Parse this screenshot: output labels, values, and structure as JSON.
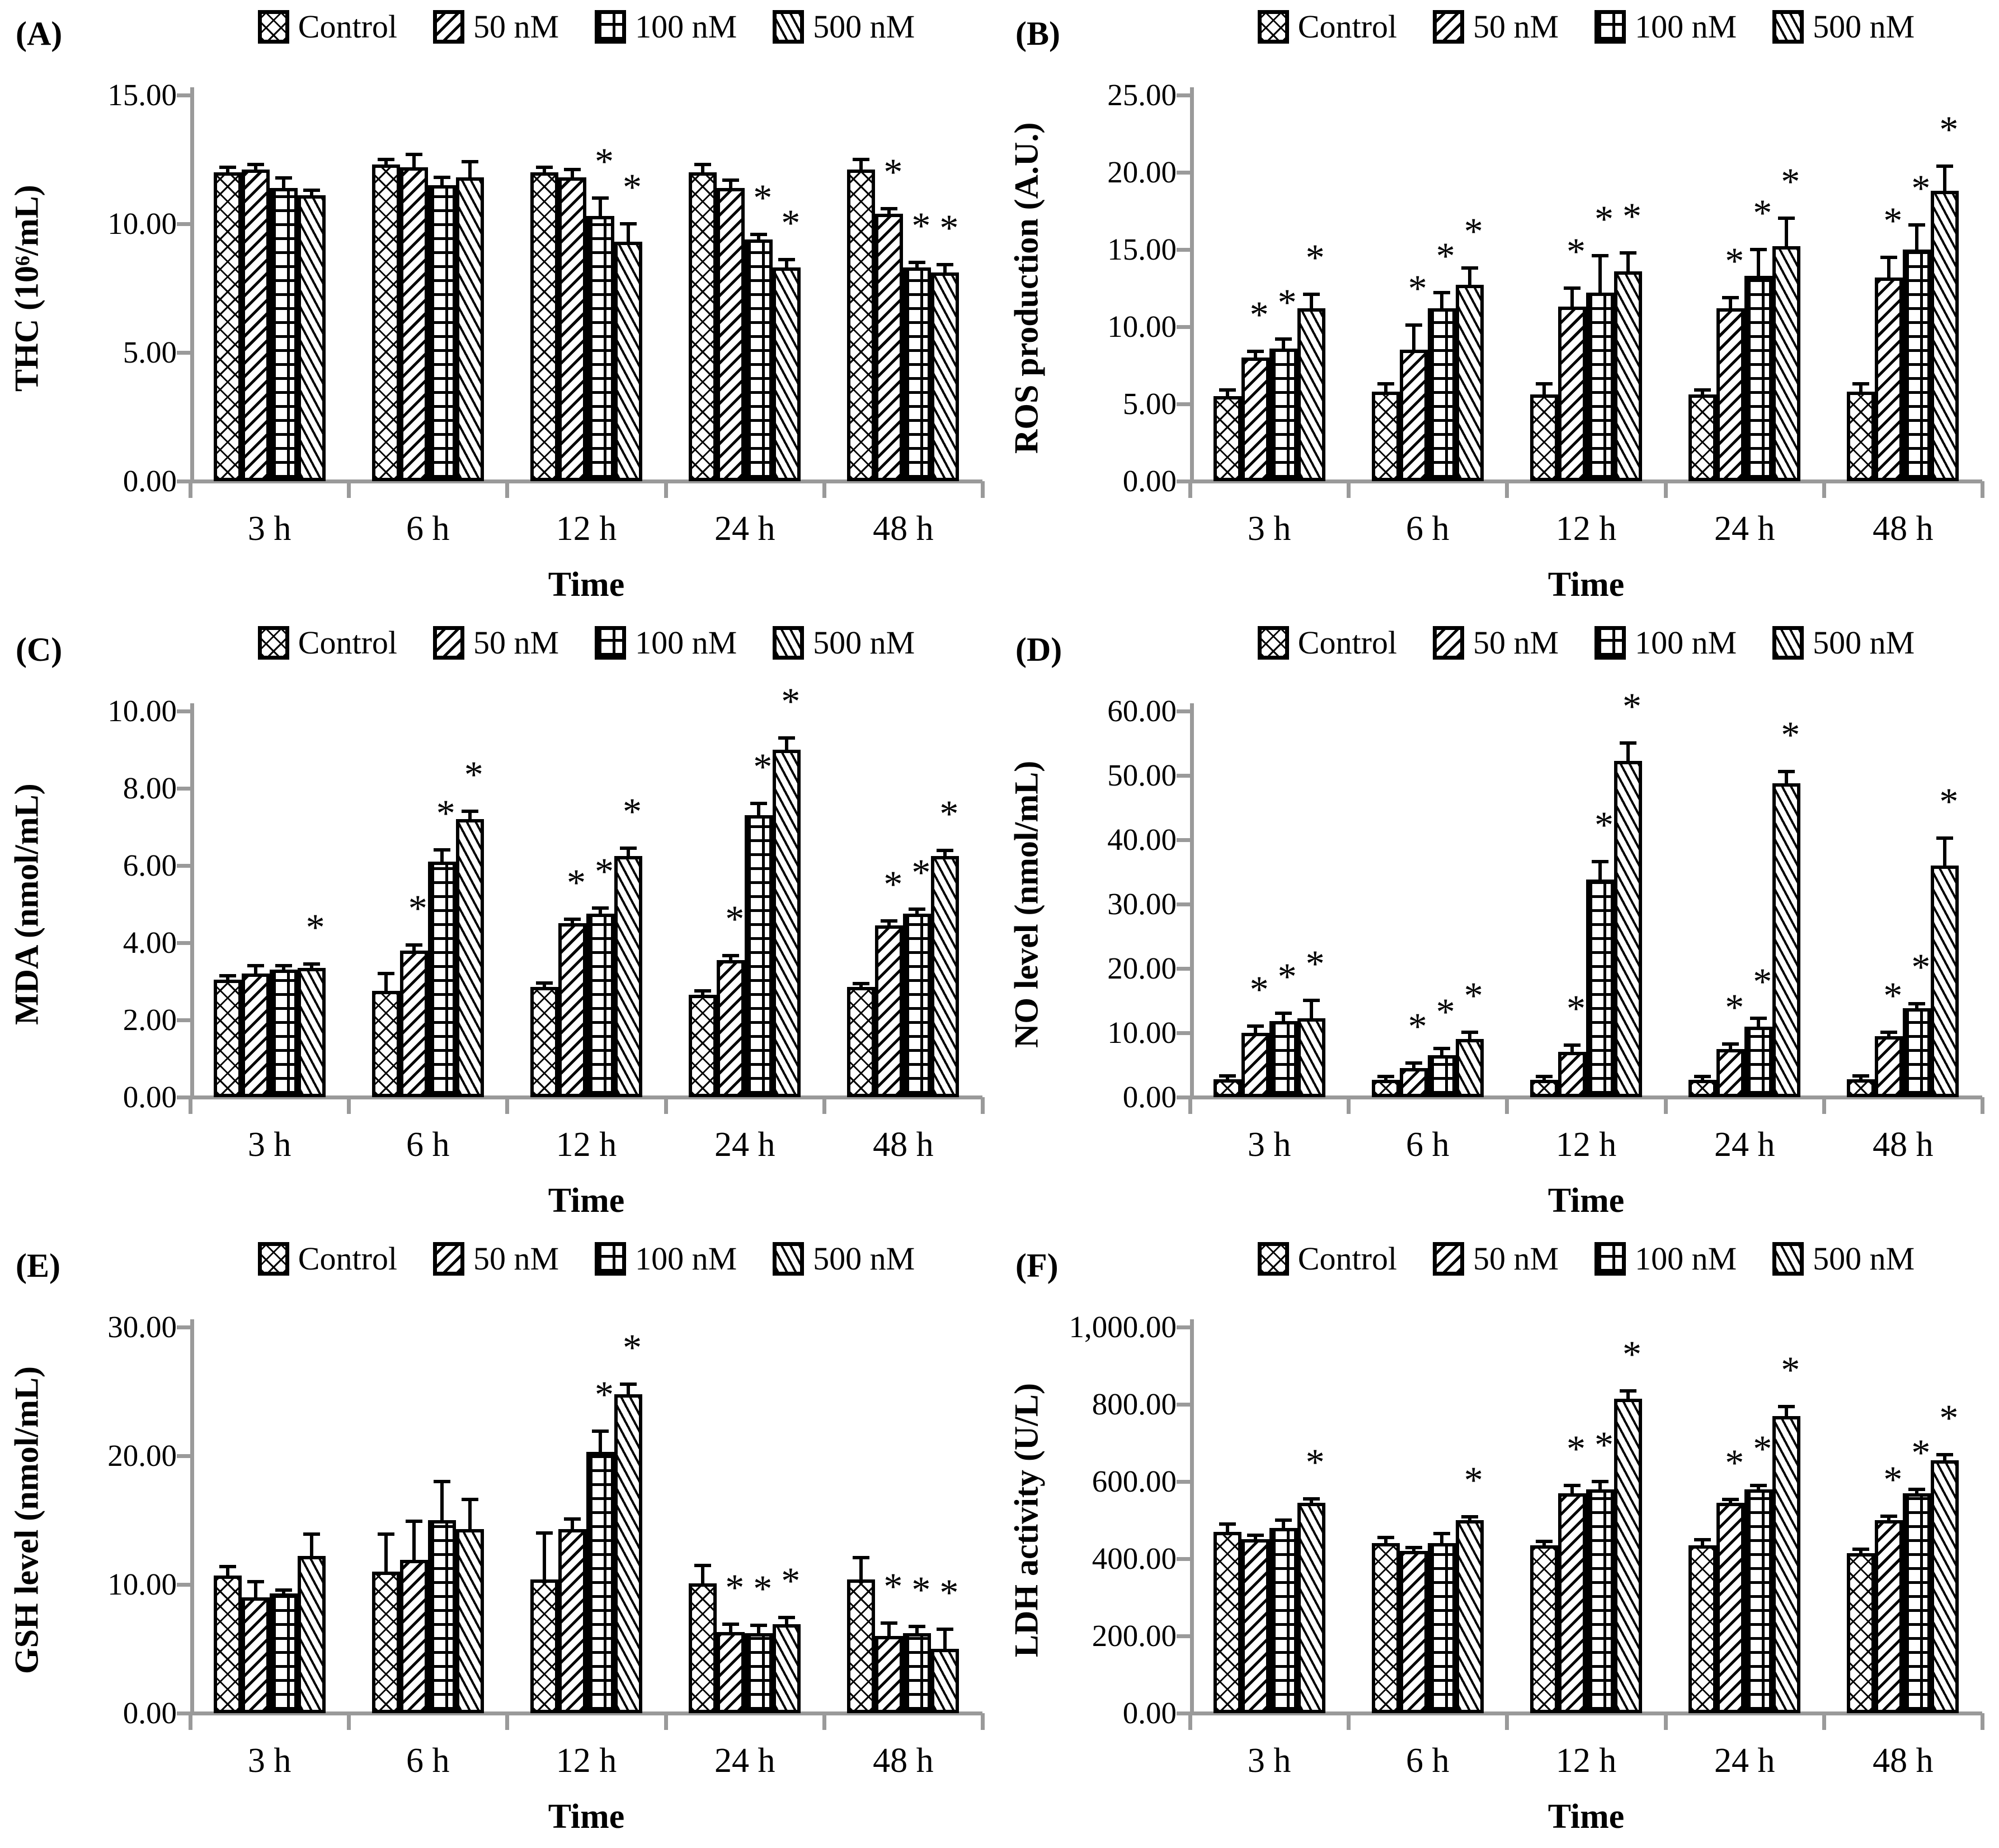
{
  "figure": {
    "significance_marker": "*",
    "xlabel": "Time",
    "categories": [
      "3 h",
      "6 h",
      "12 h",
      "24 h",
      "48 h"
    ]
  },
  "legend": {
    "items": [
      {
        "label": "Control",
        "pattern": "crosshatch"
      },
      {
        "label": "50 nM",
        "pattern": "diag-up"
      },
      {
        "label": "100 nM",
        "pattern": "grid"
      },
      {
        "label": "500 nM",
        "pattern": "diag-down"
      }
    ]
  },
  "colors": {
    "bar_fill": "#ffffff",
    "bar_stroke": "#000000",
    "axis": "#9a9a9a",
    "text": "#000000"
  },
  "chart_data": [
    {
      "id": "A",
      "type": "bar",
      "panel_label": "(A)",
      "ylabel": "THC (10⁶/mL)",
      "xlabel": "Time",
      "ymax": 15,
      "ylim": [
        0,
        15
      ],
      "grid": false,
      "legend_position": "top",
      "yticks": [
        {
          "v": 15,
          "label": "15.00"
        },
        {
          "v": 10,
          "label": "10.00"
        },
        {
          "v": 5,
          "label": "5.00"
        },
        {
          "v": 0,
          "label": "0.00"
        }
      ],
      "categories": [
        "3 h",
        "6 h",
        "12 h",
        "24 h",
        "48 h"
      ],
      "series": [
        {
          "name": "Control",
          "pattern": "crosshatch",
          "values": [
            12.0,
            12.3,
            12.0,
            12.0,
            12.1
          ],
          "errors": [
            0.2,
            0.2,
            0.2,
            0.3,
            0.4
          ],
          "sig": [
            false,
            false,
            false,
            false,
            false
          ]
        },
        {
          "name": "50 nM",
          "pattern": "diag-up",
          "values": [
            12.1,
            12.2,
            11.8,
            11.4,
            10.4
          ],
          "errors": [
            0.2,
            0.5,
            0.3,
            0.3,
            0.2
          ],
          "sig": [
            false,
            false,
            false,
            false,
            true
          ]
        },
        {
          "name": "100 nM",
          "pattern": "grid",
          "values": [
            11.4,
            11.5,
            10.3,
            9.4,
            8.3
          ],
          "errors": [
            0.4,
            0.3,
            0.7,
            0.2,
            0.2
          ],
          "sig": [
            false,
            false,
            true,
            true,
            true
          ]
        },
        {
          "name": "500 nM",
          "pattern": "diag-down",
          "values": [
            11.1,
            11.8,
            9.3,
            8.3,
            8.1
          ],
          "errors": [
            0.2,
            0.6,
            0.7,
            0.3,
            0.3
          ],
          "sig": [
            false,
            false,
            true,
            true,
            true
          ]
        }
      ]
    },
    {
      "id": "B",
      "type": "bar",
      "panel_label": "(B)",
      "ylabel": "ROS production (A.U.)",
      "xlabel": "Time",
      "ymax": 25,
      "ylim": [
        0,
        25
      ],
      "grid": false,
      "legend_position": "top",
      "yticks": [
        {
          "v": 25,
          "label": "25.00"
        },
        {
          "v": 20,
          "label": "20.00"
        },
        {
          "v": 15,
          "label": "15.00"
        },
        {
          "v": 10,
          "label": "10.00"
        },
        {
          "v": 5,
          "label": "5.00"
        },
        {
          "v": 0,
          "label": "0.00"
        }
      ],
      "categories": [
        "3 h",
        "6 h",
        "12 h",
        "24 h",
        "48 h"
      ],
      "series": [
        {
          "name": "Control",
          "pattern": "crosshatch",
          "values": [
            5.5,
            5.8,
            5.6,
            5.6,
            5.8
          ],
          "errors": [
            0.4,
            0.5,
            0.7,
            0.3,
            0.5
          ],
          "sig": [
            false,
            false,
            false,
            false,
            false
          ]
        },
        {
          "name": "50 nM",
          "pattern": "diag-up",
          "values": [
            8.0,
            8.5,
            11.3,
            11.2,
            13.2
          ],
          "errors": [
            0.4,
            1.6,
            1.2,
            0.7,
            1.3
          ],
          "sig": [
            true,
            true,
            true,
            true,
            true
          ]
        },
        {
          "name": "100 nM",
          "pattern": "grid",
          "values": [
            8.6,
            11.2,
            12.2,
            13.3,
            15.0
          ],
          "errors": [
            0.6,
            1.0,
            2.4,
            1.7,
            1.6
          ],
          "sig": [
            true,
            true,
            true,
            true,
            true
          ]
        },
        {
          "name": "500 nM",
          "pattern": "diag-down",
          "values": [
            11.2,
            12.7,
            13.6,
            15.2,
            18.8
          ],
          "errors": [
            0.9,
            1.1,
            1.2,
            1.8,
            1.6
          ],
          "sig": [
            true,
            true,
            true,
            true,
            true
          ]
        }
      ]
    },
    {
      "id": "C",
      "type": "bar",
      "panel_label": "(C)",
      "ylabel": "MDA (nmol/mL)",
      "xlabel": "Time",
      "ymax": 10,
      "ylim": [
        0,
        10
      ],
      "grid": false,
      "legend_position": "top",
      "yticks": [
        {
          "v": 10,
          "label": "10.00"
        },
        {
          "v": 8,
          "label": "8.00"
        },
        {
          "v": 6,
          "label": "6.00"
        },
        {
          "v": 4,
          "label": "4.00"
        },
        {
          "v": 2,
          "label": "2.00"
        },
        {
          "v": 0,
          "label": "0.00"
        }
      ],
      "categories": [
        "3 h",
        "6 h",
        "12 h",
        "24 h",
        "48 h"
      ],
      "series": [
        {
          "name": "Control",
          "pattern": "crosshatch",
          "values": [
            3.05,
            2.75,
            2.85,
            2.65,
            2.85
          ],
          "errors": [
            0.1,
            0.45,
            0.1,
            0.1,
            0.08
          ],
          "sig": [
            false,
            false,
            false,
            false,
            false
          ]
        },
        {
          "name": "50 nM",
          "pattern": "diag-up",
          "values": [
            3.2,
            3.8,
            4.5,
            3.55,
            4.45
          ],
          "errors": [
            0.2,
            0.15,
            0.1,
            0.12,
            0.12
          ],
          "sig": [
            false,
            true,
            true,
            true,
            true
          ]
        },
        {
          "name": "100 nM",
          "pattern": "grid",
          "values": [
            3.3,
            6.1,
            4.75,
            7.3,
            4.75
          ],
          "errors": [
            0.1,
            0.3,
            0.15,
            0.3,
            0.12
          ],
          "sig": [
            false,
            true,
            true,
            true,
            true
          ]
        },
        {
          "name": "500 nM",
          "pattern": "diag-down",
          "values": [
            3.35,
            7.2,
            6.25,
            9.0,
            6.25
          ],
          "errors": [
            0.1,
            0.2,
            0.2,
            0.3,
            0.15
          ],
          "sig": [
            true,
            true,
            true,
            true,
            true
          ]
        }
      ]
    },
    {
      "id": "D",
      "type": "bar",
      "panel_label": "(D)",
      "ylabel": "NO level (nmol/mL)",
      "xlabel": "Time",
      "ymax": 60,
      "ylim": [
        0,
        60
      ],
      "grid": false,
      "legend_position": "top",
      "yticks": [
        {
          "v": 60,
          "label": "60.00"
        },
        {
          "v": 50,
          "label": "50.00"
        },
        {
          "v": 40,
          "label": "40.00"
        },
        {
          "v": 30,
          "label": "30.00"
        },
        {
          "v": 20,
          "label": "20.00"
        },
        {
          "v": 10,
          "label": "10.00"
        },
        {
          "v": 0,
          "label": "0.00"
        }
      ],
      "categories": [
        "3 h",
        "6 h",
        "12 h",
        "24 h",
        "48 h"
      ],
      "series": [
        {
          "name": "Control",
          "pattern": "crosshatch",
          "values": [
            2.8,
            2.7,
            2.7,
            2.7,
            2.8
          ],
          "errors": [
            0.3,
            0.3,
            0.3,
            0.3,
            0.3
          ],
          "sig": [
            false,
            false,
            false,
            false,
            false
          ]
        },
        {
          "name": "50 nM",
          "pattern": "diag-up",
          "values": [
            10.0,
            4.5,
            7.0,
            7.5,
            9.5
          ],
          "errors": [
            1.0,
            0.8,
            1.0,
            0.8,
            0.6
          ],
          "sig": [
            true,
            true,
            true,
            true,
            true
          ]
        },
        {
          "name": "100 nM",
          "pattern": "grid",
          "values": [
            11.8,
            6.5,
            33.8,
            11.0,
            13.8
          ],
          "errors": [
            1.2,
            1.0,
            2.8,
            1.3,
            0.7
          ],
          "sig": [
            true,
            true,
            true,
            true,
            true
          ]
        },
        {
          "name": "500 nM",
          "pattern": "diag-down",
          "values": [
            12.3,
            9.0,
            52.3,
            48.8,
            36.0
          ],
          "errors": [
            2.8,
            1.0,
            2.8,
            1.8,
            4.3
          ],
          "sig": [
            true,
            true,
            true,
            true,
            true
          ]
        }
      ]
    },
    {
      "id": "E",
      "type": "bar",
      "panel_label": "(E)",
      "ylabel": "GSH level (nmol/mL)",
      "xlabel": "Time",
      "ymax": 30,
      "ylim": [
        0,
        30
      ],
      "grid": false,
      "legend_position": "top",
      "yticks": [
        {
          "v": 30,
          "label": "30.00"
        },
        {
          "v": 20,
          "label": "20.00"
        },
        {
          "v": 10,
          "label": "10.00"
        },
        {
          "v": 0,
          "label": "0.00"
        }
      ],
      "categories": [
        "3 h",
        "6 h",
        "12 h",
        "24 h",
        "48 h"
      ],
      "series": [
        {
          "name": "Control",
          "pattern": "crosshatch",
          "values": [
            10.7,
            11.0,
            10.4,
            10.1,
            10.4
          ],
          "errors": [
            0.7,
            2.9,
            3.6,
            1.4,
            1.7
          ],
          "sig": [
            false,
            false,
            false,
            false,
            false
          ]
        },
        {
          "name": "50 nM",
          "pattern": "diag-up",
          "values": [
            9.0,
            11.9,
            14.3,
            6.3,
            6.0
          ],
          "errors": [
            1.2,
            3.0,
            0.8,
            0.6,
            1.0
          ],
          "sig": [
            false,
            false,
            false,
            true,
            true
          ]
        },
        {
          "name": "100 nM",
          "pattern": "grid",
          "values": [
            9.3,
            15.0,
            20.3,
            6.2,
            6.2
          ],
          "errors": [
            0.2,
            3.0,
            1.6,
            0.6,
            0.5
          ],
          "sig": [
            false,
            false,
            true,
            true,
            true
          ]
        },
        {
          "name": "500 nM",
          "pattern": "diag-down",
          "values": [
            12.2,
            14.3,
            24.8,
            6.9,
            5.0
          ],
          "errors": [
            1.7,
            2.3,
            0.8,
            0.5,
            1.5
          ],
          "sig": [
            false,
            false,
            true,
            true,
            true
          ]
        }
      ]
    },
    {
      "id": "F",
      "type": "bar",
      "panel_label": "(F)",
      "ylabel": "LDH activity (U/L)",
      "xlabel": "Time",
      "ymax": 1000,
      "ylim": [
        0,
        1000
      ],
      "grid": false,
      "legend_position": "top",
      "yticks": [
        {
          "v": 1000,
          "label": "1,000.00"
        },
        {
          "v": 800,
          "label": "800.00"
        },
        {
          "v": 600,
          "label": "600.00"
        },
        {
          "v": 400,
          "label": "400.00"
        },
        {
          "v": 200,
          "label": "200.00"
        },
        {
          "v": 0,
          "label": "0.00"
        }
      ],
      "categories": [
        "3 h",
        "6 h",
        "12 h",
        "24 h",
        "48 h"
      ],
      "series": [
        {
          "name": "Control",
          "pattern": "crosshatch",
          "values": [
            470,
            440,
            435,
            435,
            415
          ],
          "errors": [
            20,
            15,
            10,
            15,
            10
          ],
          "sig": [
            false,
            false,
            false,
            false,
            false
          ]
        },
        {
          "name": "50 nM",
          "pattern": "diag-up",
          "values": [
            450,
            420,
            570,
            545,
            500
          ],
          "errors": [
            10,
            8,
            20,
            8,
            10
          ],
          "sig": [
            false,
            false,
            true,
            true,
            true
          ]
        },
        {
          "name": "100 nM",
          "pattern": "grid",
          "values": [
            480,
            440,
            580,
            580,
            570
          ],
          "errors": [
            20,
            25,
            20,
            10,
            10
          ],
          "sig": [
            false,
            false,
            true,
            true,
            true
          ]
        },
        {
          "name": "500 nM",
          "pattern": "diag-down",
          "values": [
            545,
            500,
            815,
            770,
            655
          ],
          "errors": [
            10,
            8,
            20,
            25,
            15
          ],
          "sig": [
            true,
            true,
            true,
            true,
            true
          ]
        }
      ]
    }
  ]
}
